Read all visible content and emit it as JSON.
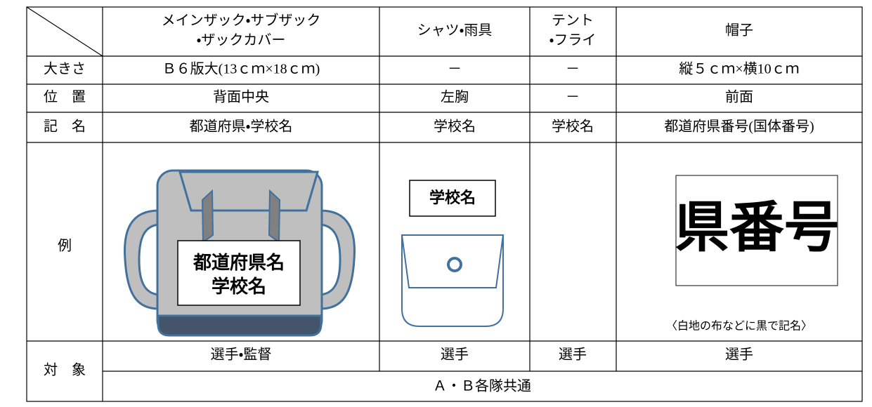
{
  "table": {
    "columns": [
      [
        "メインザック・サブザック",
        "・ザックカバー"
      ],
      [
        "シャツ・雨具"
      ],
      [
        "テント",
        "・フライ"
      ],
      [
        "帽子"
      ]
    ],
    "rows": [
      {
        "label": "大きさ",
        "cells": [
          "Ｂ６版大(13ｃｍ×18ｃｍ)",
          "－",
          "－",
          "縦５ｃｍ×横10ｃｍ"
        ]
      },
      {
        "label": "位　置",
        "cells": [
          "背面中央",
          "左胸",
          "－",
          "前面"
        ]
      },
      {
        "label": "記　名",
        "cells": [
          "都道府県・学校名",
          "学校名",
          "学校名",
          "都道府県番号(国体番号)"
        ]
      }
    ],
    "example": {
      "label": "例",
      "backpack": [
        "都道府県名",
        "学校名"
      ],
      "shirt": "学校名",
      "hat": "県番号",
      "hat_note": "〈白地の布などに黒で記名〉"
    },
    "target": {
      "label": "対　象",
      "cells": [
        "選手・監督",
        "選手",
        "選手",
        "選手"
      ],
      "common": "Ａ・Ｂ各隊共通"
    }
  }
}
